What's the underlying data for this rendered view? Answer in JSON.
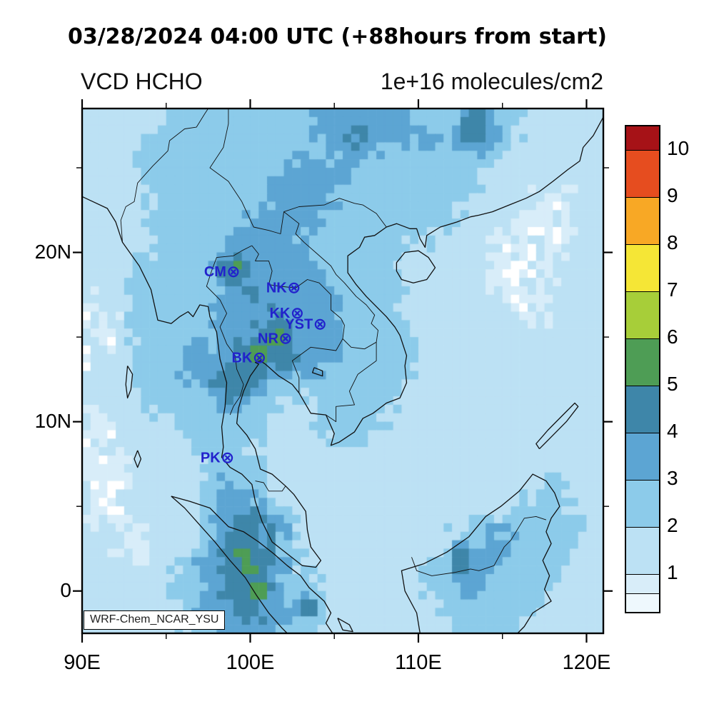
{
  "titles": {
    "datetime": "03/28/2024 04:00 UTC (+88hours from start)",
    "variable": "VCD HCHO",
    "units": "1e+16 molecules/cm2",
    "watermark": "WRF-Chem_NCAR_YSU"
  },
  "axes": {
    "x_ticks": [
      {
        "value": 90,
        "label": "90E"
      },
      {
        "value": 100,
        "label": "100E"
      },
      {
        "value": 110,
        "label": "110E"
      },
      {
        "value": 120,
        "label": "120E"
      }
    ],
    "x_minor_ticks": [
      95,
      105,
      115
    ],
    "y_ticks": [
      {
        "value": 20,
        "label": "20N"
      },
      {
        "value": 10,
        "label": "10N"
      },
      {
        "value": 0,
        "label": "0"
      }
    ],
    "y_minor_ticks": [
      25,
      15,
      5
    ]
  },
  "colorbar": {
    "min": 0.2,
    "max": 10.5,
    "bounds": [
      0.2,
      0.6,
      1,
      2,
      3,
      4,
      5,
      6,
      7,
      8,
      9,
      10,
      10.5
    ],
    "colors": [
      "#EEF8FD",
      "#D8EDF9",
      "#BCE1F4",
      "#8CCBEA",
      "#5CA5D3",
      "#3E86A9",
      "#4E9D55",
      "#A7CE39",
      "#F5E636",
      "#F8A825",
      "#E64D1F",
      "#A61217"
    ],
    "tick_values": [
      1,
      2,
      3,
      4,
      5,
      6,
      7,
      8,
      9,
      10
    ],
    "tick_labels": [
      "1",
      "2",
      "3",
      "4",
      "5",
      "6",
      "7",
      "8",
      "9",
      "10"
    ]
  },
  "stations": {
    "marker_symbol": "⊗",
    "color": "#2222CC",
    "list": [
      {
        "label": "CM",
        "lon": 99.0,
        "lat": 18.85
      },
      {
        "label": "NK",
        "lon": 102.6,
        "lat": 17.9
      },
      {
        "label": "KK",
        "lon": 102.8,
        "lat": 16.4
      },
      {
        "label": "YST",
        "lon": 104.15,
        "lat": 15.75
      },
      {
        "label": "NR",
        "lon": 102.1,
        "lat": 14.9
      },
      {
        "label": "BK",
        "lon": 100.55,
        "lat": 13.75
      },
      {
        "label": "PK",
        "lon": 98.65,
        "lat": 7.85
      }
    ]
  },
  "chart_data": {
    "type": "heatmap",
    "title": "VCD HCHO",
    "units": "1e+16 molecules/cm2",
    "lon_range": [
      90,
      121
    ],
    "lat_range": [
      -2.5,
      28.5
    ],
    "grid_lon_start": 90.5,
    "grid_lon_step": 1,
    "grid_lat_start": 28,
    "grid_lat_step": -1,
    "values": [
      [
        1.5,
        1.5,
        1.5,
        1.5,
        1.5,
        2.5,
        2.5,
        2.5,
        2.5,
        2.5,
        2.5,
        2.5,
        2.5,
        2.5,
        3.5,
        3.5,
        3.5,
        3.5,
        3.5,
        2.5,
        2.5,
        2.5,
        3.5,
        4.5,
        2.5,
        2.5,
        1.5,
        1.5,
        1.5,
        1.5,
        1.5
      ],
      [
        1.5,
        1.5,
        1.5,
        1.5,
        2.5,
        2.5,
        2.5,
        2.5,
        2.5,
        2.5,
        2.5,
        2.5,
        2.5,
        2.5,
        3.5,
        3.5,
        4.5,
        3.5,
        3.5,
        3.5,
        3.5,
        2.5,
        3.5,
        5.5,
        3.5,
        2.5,
        1.5,
        1.5,
        1.5,
        1.5,
        1.5
      ],
      [
        1.5,
        1.5,
        1.5,
        2.5,
        2.5,
        2.5,
        2.5,
        2.5,
        2.5,
        2.5,
        2.5,
        2.5,
        2.5,
        2.5,
        2.5,
        3.5,
        3.5,
        3.5,
        2.5,
        2.5,
        2.5,
        2.5,
        2.5,
        3.5,
        2.5,
        1.5,
        1.5,
        1.5,
        1.5,
        1.5,
        1.5
      ],
      [
        1.5,
        1.5,
        1.5,
        2.5,
        2.5,
        2.5,
        2.5,
        2.5,
        2.5,
        2.5,
        2.5,
        2.5,
        3.5,
        3.5,
        3.5,
        3.5,
        2.5,
        2.5,
        2.5,
        2.5,
        2.5,
        2.5,
        2.5,
        2.5,
        1.5,
        1.5,
        1.5,
        1.5,
        1.5,
        1.5,
        1.5
      ],
      [
        1.5,
        1.5,
        1.5,
        1.5,
        2.5,
        2.5,
        2.5,
        2.5,
        2.5,
        2.5,
        2.5,
        3.5,
        3.5,
        3.5,
        3.5,
        2.5,
        2.5,
        2.5,
        2.5,
        2.5,
        2.5,
        2.5,
        2.5,
        2.5,
        1.5,
        1.5,
        1.5,
        1.5,
        1.5,
        1.5,
        1.5
      ],
      [
        1.5,
        1.5,
        1.5,
        1.5,
        2.5,
        2.5,
        2.5,
        2.5,
        2.5,
        2.5,
        2.5,
        3.5,
        3.5,
        3.5,
        3.5,
        2.5,
        2.5,
        2.5,
        2.5,
        2.5,
        2.5,
        2.5,
        2.5,
        1.5,
        1.5,
        1.5,
        1.5,
        0.7,
        0.7,
        1.5,
        1.5
      ],
      [
        1.5,
        1.5,
        1.5,
        1.5,
        2.5,
        2.5,
        2.5,
        2.5,
        2.5,
        2.5,
        3.5,
        3.5,
        3.5,
        3.5,
        2.5,
        2.5,
        2.5,
        2.5,
        2.5,
        2.5,
        2.5,
        2.5,
        1.5,
        1.5,
        1.5,
        1.5,
        0.7,
        0.7,
        0.7,
        1.5,
        1.5
      ],
      [
        1.5,
        1.5,
        1.5,
        1.5,
        2.5,
        2.5,
        2.5,
        2.5,
        2.5,
        3.5,
        3.5,
        3.5,
        3.5,
        2.5,
        2.5,
        2.5,
        2.5,
        2.5,
        2.5,
        2.5,
        2.5,
        1.5,
        1.5,
        1.5,
        1.5,
        0.7,
        0.7,
        0.7,
        0.7,
        1.5,
        1.5
      ],
      [
        1.5,
        1.5,
        1.5,
        1.5,
        2.5,
        2.5,
        2.5,
        2.5,
        3.5,
        3.5,
        3.5,
        3.5,
        3.5,
        2.5,
        2.5,
        2.5,
        2.5,
        2.5,
        2.5,
        1.5,
        1.5,
        1.5,
        1.5,
        1.5,
        0.7,
        0.7,
        0.7,
        0.7,
        0.7,
        1.5,
        1.5
      ],
      [
        1.5,
        1.5,
        1.5,
        2.5,
        2.5,
        2.5,
        2.5,
        2.5,
        4.5,
        5.5,
        3.5,
        3.5,
        3.5,
        3.5,
        2.5,
        2.5,
        2.5,
        2.5,
        2.5,
        1.5,
        1.5,
        1.5,
        1.5,
        1.5,
        0.7,
        0.7,
        0.7,
        0.7,
        0.7,
        1.5,
        1.5
      ],
      [
        1.5,
        1.5,
        1.5,
        2.5,
        2.5,
        2.5,
        2.5,
        2.5,
        3.5,
        4.5,
        3.5,
        3.5,
        3.5,
        3.5,
        3.5,
        2.5,
        2.5,
        2.5,
        2.5,
        1.5,
        1.5,
        1.5,
        1.5,
        1.5,
        0.7,
        0.7,
        0.7,
        0.7,
        1.5,
        1.5,
        1.5
      ],
      [
        0.7,
        1.5,
        1.5,
        2.5,
        2.5,
        2.5,
        2.5,
        2.5,
        3.5,
        3.5,
        3.5,
        3.5,
        3.5,
        3.5,
        3.5,
        3.5,
        2.5,
        2.5,
        2.5,
        1.5,
        1.5,
        1.5,
        1.5,
        1.5,
        1.5,
        0.7,
        0.7,
        0.7,
        1.5,
        1.5,
        1.5
      ],
      [
        0.7,
        0.7,
        1.5,
        2.5,
        2.5,
        2.5,
        2.5,
        2.5,
        3.5,
        3.5,
        3.5,
        4.5,
        3.5,
        3.5,
        3.5,
        2.5,
        2.5,
        2.5,
        2.5,
        1.5,
        1.5,
        1.5,
        1.5,
        1.5,
        1.5,
        1.5,
        0.7,
        0.7,
        1.5,
        1.5,
        1.5
      ],
      [
        0.7,
        0.7,
        1.5,
        2.5,
        2.5,
        2.5,
        2.5,
        2.5,
        3.5,
        3.5,
        4.5,
        5.5,
        4.5,
        3.5,
        3.5,
        2.5,
        2.5,
        2.5,
        2.5,
        2.5,
        1.5,
        1.5,
        1.5,
        1.5,
        1.5,
        1.5,
        1.5,
        1.5,
        1.5,
        1.5,
        1.5
      ],
      [
        0.7,
        0.7,
        1.5,
        2.5,
        2.5,
        2.5,
        3.5,
        3.5,
        3.5,
        4.5,
        5.5,
        4.5,
        4.5,
        3.5,
        3.5,
        2.5,
        2.5,
        2.5,
        2.5,
        2.5,
        1.5,
        1.5,
        1.5,
        1.5,
        1.5,
        1.5,
        1.5,
        1.5,
        1.5,
        1.5,
        1.5
      ],
      [
        0.7,
        1.5,
        1.5,
        2.5,
        2.5,
        2.5,
        3.5,
        3.5,
        4.5,
        4.5,
        4.5,
        3.5,
        3.5,
        3.5,
        2.5,
        2.5,
        2.5,
        2.5,
        2.5,
        2.5,
        1.5,
        1.5,
        1.5,
        1.5,
        1.5,
        1.5,
        1.5,
        1.5,
        1.5,
        1.5,
        1.5
      ],
      [
        1.5,
        1.5,
        1.5,
        2.5,
        2.5,
        2.5,
        2.5,
        3.5,
        4.5,
        4.5,
        3.5,
        2.5,
        2.5,
        2.5,
        2.5,
        2.5,
        2.5,
        2.5,
        2.5,
        1.5,
        1.5,
        1.5,
        1.5,
        1.5,
        1.5,
        1.5,
        1.5,
        1.5,
        1.5,
        1.5,
        1.5
      ],
      [
        0.7,
        1.5,
        1.5,
        1.5,
        2.5,
        2.5,
        2.5,
        2.5,
        3.5,
        3.5,
        2.5,
        2.5,
        1.5,
        1.5,
        2.5,
        2.5,
        2.5,
        2.5,
        2.5,
        1.5,
        1.5,
        1.5,
        1.5,
        1.5,
        1.5,
        1.5,
        1.5,
        1.5,
        1.5,
        1.5,
        1.5
      ],
      [
        0.7,
        0.7,
        1.5,
        1.5,
        1.5,
        2.5,
        2.5,
        2.5,
        2.5,
        2.5,
        2.5,
        1.5,
        1.5,
        1.5,
        2.5,
        2.5,
        2.5,
        2.5,
        1.5,
        1.5,
        1.5,
        1.5,
        1.5,
        1.5,
        1.5,
        1.5,
        1.5,
        1.5,
        1.5,
        1.5,
        1.5
      ],
      [
        0.7,
        0.7,
        1.5,
        1.5,
        1.5,
        1.5,
        2.5,
        2.5,
        2.5,
        2.5,
        2.5,
        1.5,
        1.5,
        1.5,
        1.5,
        2.5,
        2.5,
        1.5,
        1.5,
        1.5,
        1.5,
        1.5,
        1.5,
        1.5,
        1.5,
        1.5,
        1.5,
        1.5,
        1.5,
        1.5,
        1.5
      ],
      [
        0.7,
        0.7,
        0.7,
        1.5,
        1.5,
        1.5,
        1.5,
        2.5,
        2.5,
        2.5,
        1.5,
        1.5,
        1.5,
        1.5,
        1.5,
        1.5,
        1.5,
        1.5,
        1.5,
        1.5,
        1.5,
        1.5,
        1.5,
        1.5,
        1.5,
        1.5,
        1.5,
        1.5,
        1.5,
        1.5,
        1.5
      ],
      [
        0.7,
        0.7,
        0.7,
        1.5,
        1.5,
        1.5,
        1.5,
        2.5,
        2.5,
        2.5,
        2.5,
        1.5,
        1.5,
        1.5,
        1.5,
        1.5,
        1.5,
        1.5,
        1.5,
        1.5,
        1.5,
        1.5,
        1.5,
        1.5,
        1.5,
        1.5,
        1.5,
        1.5,
        1.5,
        1.5,
        1.5
      ],
      [
        0.7,
        0.7,
        0.7,
        1.5,
        1.5,
        1.5,
        1.5,
        2.5,
        3.5,
        3.5,
        2.5,
        1.5,
        1.5,
        1.5,
        1.5,
        1.5,
        1.5,
        1.5,
        1.5,
        1.5,
        1.5,
        1.5,
        1.5,
        1.5,
        1.5,
        1.5,
        1.5,
        2.5,
        2.5,
        1.5,
        1.5
      ],
      [
        0.7,
        0.7,
        0.7,
        1.5,
        1.5,
        1.5,
        1.5,
        2.5,
        3.5,
        3.5,
        3.5,
        2.5,
        1.5,
        1.5,
        1.5,
        1.5,
        1.5,
        1.5,
        1.5,
        1.5,
        1.5,
        1.5,
        1.5,
        1.5,
        1.5,
        1.5,
        2.5,
        2.5,
        2.5,
        1.5,
        1.5
      ],
      [
        1.5,
        0.7,
        0.7,
        1.5,
        1.5,
        1.5,
        1.5,
        2.5,
        3.5,
        4.5,
        4.5,
        3.5,
        2.5,
        1.5,
        1.5,
        1.5,
        1.5,
        1.5,
        1.5,
        1.5,
        1.5,
        1.5,
        1.5,
        2.5,
        2.5,
        2.5,
        2.5,
        2.5,
        2.5,
        2.5,
        1.5
      ],
      [
        1.5,
        1.5,
        0.7,
        0.7,
        1.5,
        1.5,
        1.5,
        2.5,
        3.5,
        4.5,
        4.5,
        3.5,
        2.5,
        1.5,
        1.5,
        1.5,
        1.5,
        1.5,
        1.5,
        1.5,
        1.5,
        1.5,
        2.5,
        2.5,
        3.5,
        3.5,
        2.5,
        2.5,
        2.5,
        2.5,
        1.5
      ],
      [
        1.5,
        1.5,
        1.5,
        0.7,
        1.5,
        1.5,
        2.5,
        3.5,
        4.5,
        5.5,
        4.5,
        3.5,
        2.5,
        1.5,
        1.5,
        1.5,
        1.5,
        1.5,
        1.5,
        1.5,
        1.5,
        2.5,
        5.5,
        3.5,
        3.5,
        2.5,
        2.5,
        2.5,
        2.5,
        1.5,
        1.5
      ],
      [
        1.5,
        1.5,
        1.5,
        1.5,
        1.5,
        2.5,
        2.5,
        3.5,
        4.5,
        4.5,
        4.5,
        3.5,
        2.5,
        2.5,
        1.5,
        1.5,
        1.5,
        1.5,
        1.5,
        1.5,
        2.5,
        2.5,
        3.5,
        3.5,
        2.5,
        2.5,
        2.5,
        2.5,
        2.5,
        1.5,
        1.5
      ],
      [
        1.5,
        1.5,
        1.5,
        1.5,
        1.5,
        2.5,
        2.5,
        3.5,
        4.5,
        4.5,
        5.5,
        3.5,
        2.5,
        2.5,
        1.5,
        1.5,
        1.5,
        1.5,
        1.5,
        1.5,
        2.5,
        2.5,
        3.5,
        2.5,
        2.5,
        2.5,
        2.5,
        2.5,
        1.5,
        1.5,
        1.5
      ],
      [
        1.5,
        1.5,
        1.5,
        1.5,
        1.5,
        1.5,
        2.5,
        3.5,
        3.5,
        4.5,
        4.5,
        3.5,
        3.5,
        5.5,
        1.5,
        1.5,
        1.5,
        1.5,
        1.5,
        1.5,
        1.5,
        2.5,
        2.5,
        2.5,
        2.5,
        2.5,
        2.5,
        1.5,
        1.5,
        1.5,
        1.5
      ],
      [
        1.5,
        1.5,
        1.5,
        1.5,
        1.5,
        1.5,
        2.5,
        2.5,
        3.5,
        3.5,
        3.5,
        3.5,
        2.5,
        2.5,
        1.5,
        1.5,
        1.5,
        1.5,
        1.5,
        1.5,
        1.5,
        1.5,
        2.5,
        2.5,
        2.5,
        2.5,
        1.5,
        1.5,
        1.5,
        1.5,
        1.5
      ]
    ]
  }
}
